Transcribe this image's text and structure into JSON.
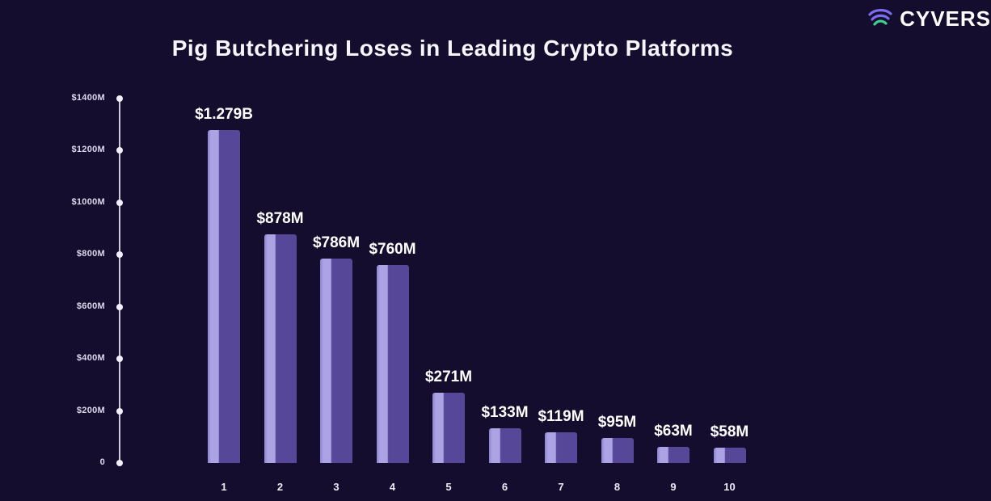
{
  "header": {
    "title": "Pig Butchering Loses in Leading Crypto Platforms",
    "brand": "CYVERS"
  },
  "chart_data": {
    "type": "bar",
    "title": "Pig Butchering Loses in Leading Crypto Platforms",
    "categories": [
      "1",
      "2",
      "3",
      "4",
      "5",
      "6",
      "7",
      "8",
      "9",
      "10"
    ],
    "values": [
      1279,
      878,
      786,
      760,
      271,
      133,
      119,
      95,
      63,
      58
    ],
    "value_labels": [
      "$1.279B",
      "$878M",
      "$786M",
      "$760M",
      "$271M",
      "$133M",
      "$119M",
      "$95M",
      "$63M",
      "$58M"
    ],
    "xlabel": "",
    "ylabel": "",
    "ylim": [
      0,
      1400
    ],
    "y_tick_labels": [
      "$1400M",
      "$1200M",
      "$1000M",
      "$800M",
      "$600M",
      "$400M",
      "$200M",
      "0"
    ],
    "y_tick_values": [
      1400,
      1200,
      1000,
      800,
      600,
      400,
      200,
      0
    ],
    "grid": "off",
    "legend": "none",
    "colors": {
      "background": "#140d2d",
      "bar_light": "#aba3e4",
      "bar_dark": "#564798",
      "bar_edge": "#8d83d2",
      "axis": "#eeecf8",
      "text": "#ffffff",
      "logo_purple": "#7c6cf0",
      "logo_green": "#3fd08f"
    }
  }
}
